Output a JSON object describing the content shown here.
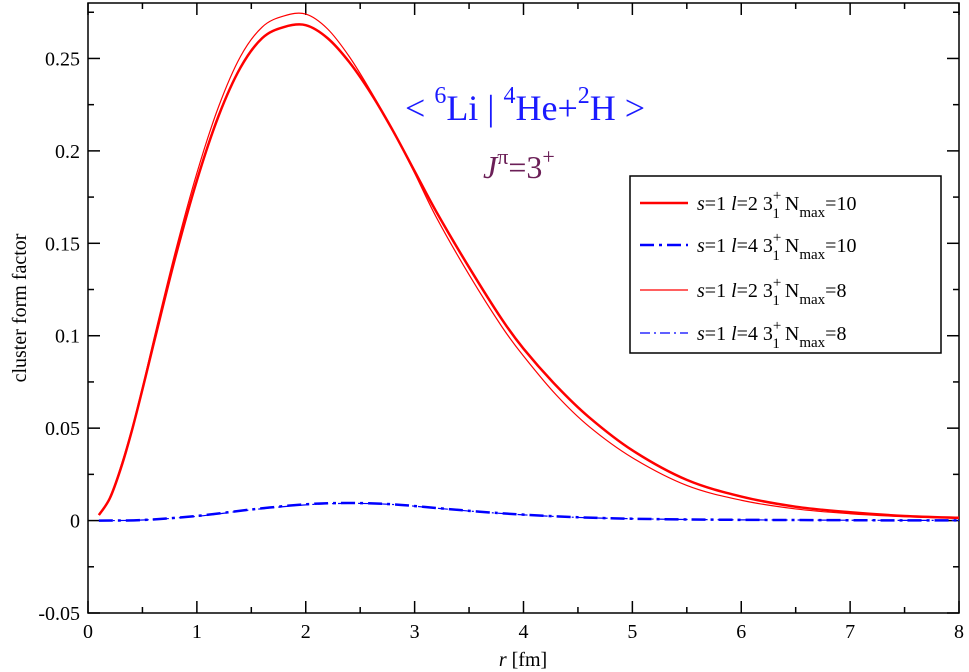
{
  "chart_data": {
    "type": "line",
    "title": {
      "open": "< ",
      "a_sup": "6",
      "a_base": "Li | ",
      "b_sup": "4",
      "b_base": "He+",
      "c_sup": "2",
      "c_base": "H >"
    },
    "subtitle": {
      "base": "J",
      "sup1": "π",
      "mid": "=3",
      "sup2": "+"
    },
    "xlabel": {
      "var": "r",
      "unit": " [fm]"
    },
    "ylabel": "cluster form factor",
    "xlim": [
      0,
      8
    ],
    "ylim": [
      -0.05,
      0.28
    ],
    "x_ticks": [
      "0",
      "1",
      "2",
      "3",
      "4",
      "5",
      "6",
      "7",
      "8"
    ],
    "x_tick_values": [
      0,
      1,
      2,
      3,
      4,
      5,
      6,
      7,
      8
    ],
    "y_ticks": [
      "-0.05",
      "0",
      "0.05",
      "0.1",
      "0.15",
      "0.2",
      "0.25"
    ],
    "y_tick_values": [
      -0.05,
      0,
      0.05,
      0.1,
      0.15,
      0.2,
      0.25
    ],
    "grid": false,
    "legend_position": "top-right",
    "colors": {
      "red": "#ff0000",
      "blue": "#0000ff"
    },
    "series": [
      {
        "legend": {
          "s": "s",
          "s_val": "=1 ",
          "l": "l",
          "l_val": "=2  3",
          "sup": "+",
          "sub": "1",
          "n": "  N",
          "n_sub": "max",
          "n_val": "=10"
        },
        "color": "#ff0000",
        "style": "solid",
        "width": "thick",
        "x": [
          0.1,
          0.2,
          0.3,
          0.4,
          0.5,
          0.6,
          0.8,
          1.0,
          1.2,
          1.4,
          1.6,
          1.8,
          2.0,
          2.2,
          2.4,
          2.6,
          2.8,
          3.0,
          3.2,
          3.5,
          3.8,
          4.0,
          4.3,
          4.6,
          5.0,
          5.5,
          6.0,
          6.5,
          7.0,
          7.5,
          8.0
        ],
        "y": [
          0.003,
          0.012,
          0.028,
          0.048,
          0.071,
          0.095,
          0.142,
          0.184,
          0.219,
          0.245,
          0.261,
          0.267,
          0.268,
          0.261,
          0.248,
          0.231,
          0.211,
          0.189,
          0.167,
          0.137,
          0.109,
          0.093,
          0.073,
          0.056,
          0.038,
          0.022,
          0.013,
          0.0075,
          0.0045,
          0.0025,
          0.0015
        ]
      },
      {
        "legend": {
          "s": "s",
          "s_val": "=1 ",
          "l": "l",
          "l_val": "=4  3",
          "sup": "+",
          "sub": "1",
          "n": "  N",
          "n_sub": "max",
          "n_val": "=10"
        },
        "color": "#0000ff",
        "style": "dashdot",
        "width": "thick",
        "x": [
          0.1,
          0.5,
          1.0,
          1.5,
          2.0,
          2.4,
          2.8,
          3.2,
          3.6,
          4.0,
          4.5,
          5.0,
          5.5,
          6.0,
          6.5,
          7.0,
          7.5,
          8.0
        ],
        "y": [
          0.0,
          0.0003,
          0.0025,
          0.006,
          0.0088,
          0.0095,
          0.0088,
          0.0068,
          0.0048,
          0.0032,
          0.0018,
          0.001,
          0.0006,
          0.0004,
          0.0003,
          0.0002,
          0.0001,
          0.0001
        ]
      },
      {
        "legend": {
          "s": "s",
          "s_val": "=1 ",
          "l": "l",
          "l_val": "=2  3",
          "sup": "+",
          "sub": "1",
          "n": "  N",
          "n_sub": "max",
          "n_val": "=8"
        },
        "color": "#ff0000",
        "style": "solid",
        "width": "thin",
        "x": [
          0.1,
          0.2,
          0.3,
          0.4,
          0.5,
          0.6,
          0.8,
          1.0,
          1.2,
          1.4,
          1.6,
          1.8,
          2.0,
          2.2,
          2.4,
          2.6,
          2.8,
          3.0,
          3.2,
          3.5,
          3.8,
          4.0,
          4.3,
          4.6,
          5.0,
          5.5,
          6.0,
          6.5,
          7.0,
          7.5,
          8.0
        ],
        "y": [
          0.003,
          0.012,
          0.029,
          0.049,
          0.072,
          0.097,
          0.145,
          0.188,
          0.224,
          0.251,
          0.267,
          0.273,
          0.274,
          0.266,
          0.251,
          0.232,
          0.211,
          0.188,
          0.164,
          0.133,
          0.105,
          0.089,
          0.068,
          0.051,
          0.034,
          0.019,
          0.011,
          0.0063,
          0.0037,
          0.0021,
          0.0012
        ]
      },
      {
        "legend": {
          "s": "s",
          "s_val": "=1 ",
          "l": "l",
          "l_val": "=4  3",
          "sup": "+",
          "sub": "1",
          "n": "  N",
          "n_sub": "max",
          "n_val": "=8"
        },
        "color": "#0000ff",
        "style": "dashdot",
        "width": "thin",
        "x": [
          0.1,
          0.5,
          1.0,
          1.5,
          2.0,
          2.4,
          2.8,
          3.2,
          3.6,
          4.0,
          4.5,
          5.0,
          5.5,
          6.0,
          6.5,
          7.0,
          7.5,
          8.0
        ],
        "y": [
          0.0,
          0.0003,
          0.0023,
          0.0058,
          0.0085,
          0.0093,
          0.0087,
          0.0067,
          0.0047,
          0.0031,
          0.0017,
          0.001,
          0.0006,
          0.0004,
          0.0003,
          0.0002,
          0.0001,
          0.0001
        ]
      }
    ]
  }
}
